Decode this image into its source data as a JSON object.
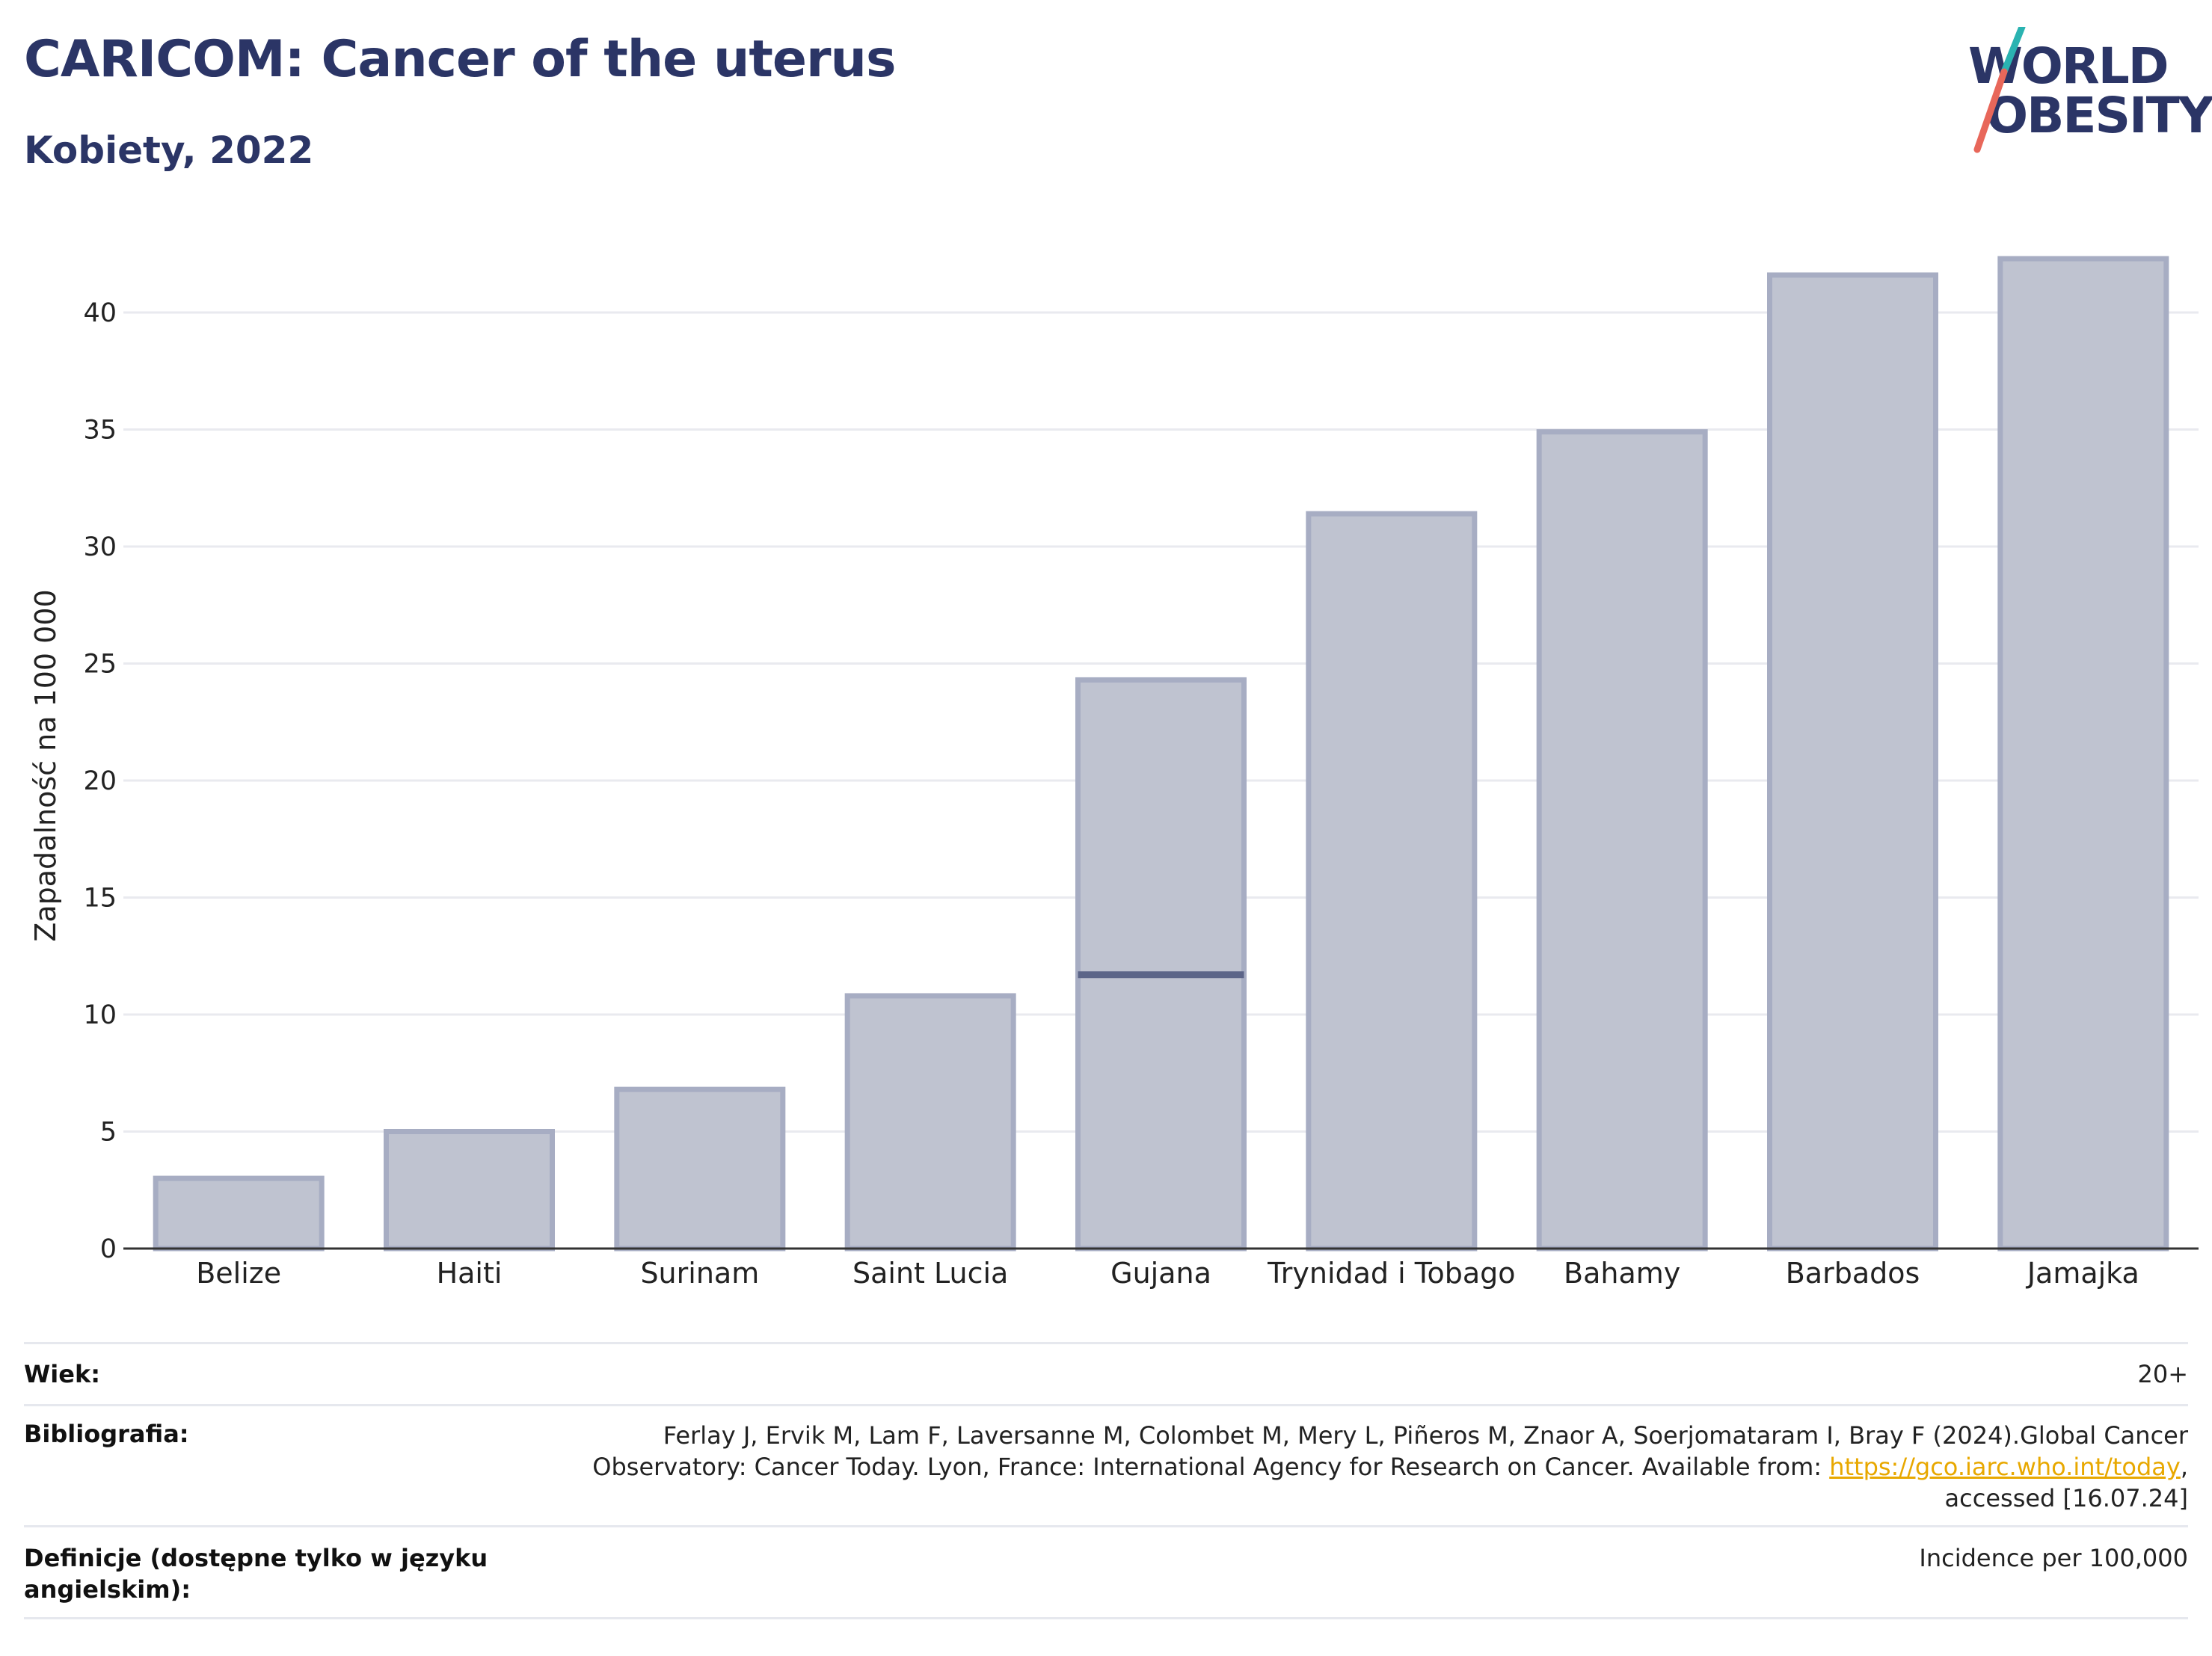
{
  "header": {
    "title": "CARICOM: Cancer of the uterus",
    "subtitle": "Kobiety, 2022",
    "logo_line1": "WORLD",
    "logo_line2": "OBESITY"
  },
  "colors": {
    "title": "#2b3566",
    "bar_fill": "#bfc3d0",
    "bar_stroke": "#a7adc3",
    "marker": "#5c6588",
    "link": "#e8a800",
    "logo_teal": "#2ab3b1",
    "logo_coral": "#e8675a"
  },
  "chart_data": {
    "type": "bar",
    "ylabel": "Zapadalność na 100 000",
    "xlabel": "",
    "ylim": [
      0,
      43
    ],
    "yticks": [
      0,
      5,
      10,
      15,
      20,
      25,
      30,
      35,
      40
    ],
    "grid": true,
    "categories": [
      "Belize",
      "Haiti",
      "Surinam",
      "Saint Lucia",
      "Gujana",
      "Trynidad i Tobago",
      "Bahamy",
      "Barbados",
      "Jamajka"
    ],
    "values": [
      3.0,
      5.0,
      6.8,
      10.8,
      24.3,
      31.4,
      34.9,
      41.6,
      42.3
    ],
    "reference_marker": {
      "category": "Gujana",
      "value": 11.7
    }
  },
  "footer": {
    "rows": [
      {
        "label": "Wiek:",
        "value": "20+"
      },
      {
        "label": "Bibliografia:",
        "value_line1": "Ferlay J, Ervik M, Lam F, Laversanne M, Colombet M, Mery L, Piñeros M, Znaor A, Soerjomataram I, Bray F (2024).Global Cancer",
        "value_line2_pre": "Observatory: Cancer Today. Lyon, France: International Agency for Research on Cancer. Available from: ",
        "value_link": "https://gco.iarc.who.int/today",
        "value_line2_post": ",",
        "value_line3": "accessed [16.07.24]"
      },
      {
        "label_line1": "Definicje (dostępne tylko w języku",
        "label_line2": "angielskim):",
        "value": "Incidence per 100,000"
      }
    ]
  }
}
